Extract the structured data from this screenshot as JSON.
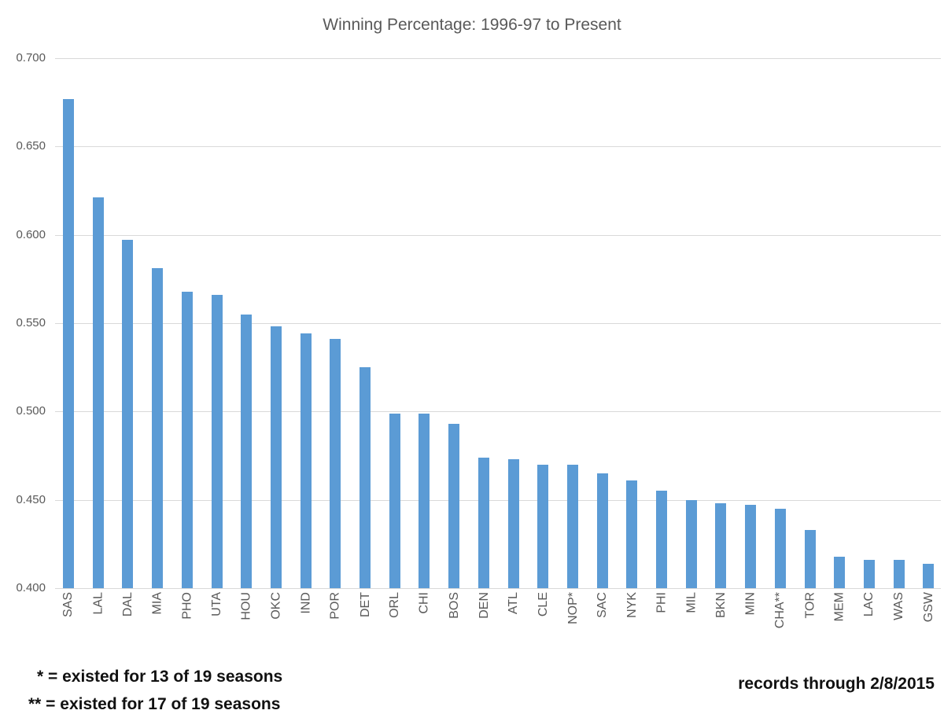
{
  "chart_data": {
    "type": "bar",
    "title": "Winning Percentage: 1996-97 to Present",
    "categories": [
      "SAS",
      "LAL",
      "DAL",
      "MIA",
      "PHO",
      "UTA",
      "HOU",
      "OKC",
      "IND",
      "POR",
      "DET",
      "ORL",
      "CHI",
      "BOS",
      "DEN",
      "ATL",
      "CLE",
      "NOP*",
      "SAC",
      "NYK",
      "PHI",
      "MIL",
      "BKN",
      "MIN",
      "CHA**",
      "TOR",
      "MEM",
      "LAC",
      "WAS",
      "GSW"
    ],
    "values": [
      0.677,
      0.621,
      0.597,
      0.581,
      0.568,
      0.566,
      0.555,
      0.548,
      0.544,
      0.541,
      0.525,
      0.499,
      0.499,
      0.493,
      0.474,
      0.473,
      0.47,
      0.47,
      0.465,
      0.461,
      0.455,
      0.45,
      0.448,
      0.447,
      0.445,
      0.433,
      0.418,
      0.416,
      0.416,
      0.414
    ],
    "xlabel": "",
    "ylabel": "",
    "ylim": [
      0.4,
      0.7
    ],
    "ytick_labels": [
      "0.700",
      "0.650",
      "0.600",
      "0.550",
      "0.500",
      "0.450",
      "0.400"
    ],
    "grid": true,
    "legend": false,
    "bar_color": "#5b9bd5",
    "grid_color": "#d9d9d9",
    "axis_text_color": "#595959",
    "title_color": "#595959"
  },
  "footnotes": {
    "line1": "* = existed for 13 of 19 seasons",
    "line2": "** = existed for 17 of 19 seasons",
    "records": "records through 2/8/2015"
  }
}
